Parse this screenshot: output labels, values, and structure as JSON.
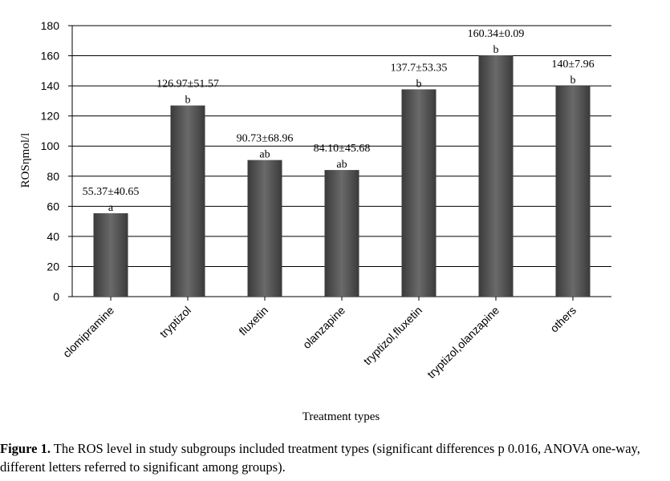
{
  "chart_data": {
    "type": "bar",
    "title": "",
    "xlabel": "Treatment types",
    "ylabel": "ROSηmol/l",
    "ylim": [
      0,
      180
    ],
    "yticks": [
      0,
      20,
      40,
      60,
      80,
      100,
      120,
      140,
      160,
      180
    ],
    "grid": true,
    "legend": "none",
    "categories": [
      "clomipramine",
      "tryptizol",
      "fluxetin",
      "olanzapine",
      "tryptizol,fluxetin",
      "tryptizol,olanzapine",
      "others"
    ],
    "values": [
      55.37,
      126.97,
      90.73,
      84.1,
      137.7,
      160.34,
      140
    ],
    "value_labels": [
      "55.37±40.65",
      "126.97±51.57",
      "90.73±68.96",
      "84.10±45.68",
      "137.7±53.35",
      "160.34±0.09",
      "140±7.96"
    ],
    "group_letters": [
      "a",
      "b",
      "ab",
      "ab",
      "b",
      "b",
      "b"
    ],
    "bar_color": "#555555"
  },
  "caption": {
    "label": "Figure 1.",
    "text": " The ROS level in study subgroups included treatment types (significant differences p 0.016, ANOVA one-way, different letters referred to significant among groups)."
  }
}
